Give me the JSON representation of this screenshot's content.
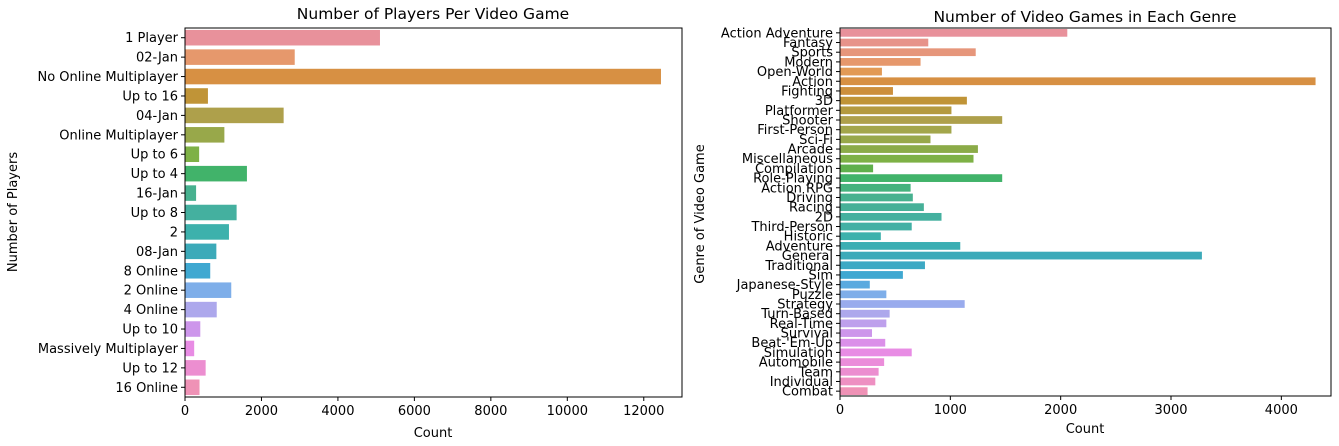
{
  "chart_data": [
    {
      "type": "bar",
      "orientation": "horizontal",
      "title": "Number of Players Per Video Game",
      "xlabel": "Count",
      "ylabel": "Number of Players",
      "xlim": [
        0,
        13000
      ],
      "xticks": [
        0,
        2000,
        4000,
        6000,
        8000,
        10000,
        12000
      ],
      "grid": false,
      "categories": [
        "1 Player",
        "02-Jan",
        "No Online Multiplayer",
        "Up to 16 ",
        "04-Jan",
        "Online Multiplayer",
        "Up to 6 ",
        "Up to 4 ",
        "16-Jan",
        "Up to 8 ",
        "2",
        "08-Jan",
        "8  Online",
        "2  Online",
        "4  Online",
        "Up to 10 ",
        "Massively Multiplayer",
        "Up to 12 ",
        "16  Online"
      ],
      "values": [
        5100,
        2870,
        12450,
        600,
        2580,
        1030,
        370,
        1620,
        290,
        1350,
        1150,
        820,
        660,
        1210,
        830,
        400,
        240,
        540,
        380
      ],
      "colors": [
        "#e8919b",
        "#e6986c",
        "#d79043",
        "#c09437",
        "#aea04b",
        "#98a84a",
        "#7eb146",
        "#41b36a",
        "#47b18f",
        "#44b09f",
        "#3db1ac",
        "#3caab9",
        "#3fa8d1",
        "#7eaee9",
        "#ada8ec",
        "#cd96eb",
        "#e88ce4",
        "#ec8ed0",
        "#ef92b6"
      ]
    },
    {
      "type": "bar",
      "orientation": "horizontal",
      "title": "Number of Video Games in Each Genre",
      "xlabel": "Count",
      "ylabel": "Genre of Video Game",
      "xlim": [
        0,
        4450
      ],
      "xticks": [
        0,
        1000,
        2000,
        3000,
        4000
      ],
      "grid": false,
      "categories": [
        "Action Adventure",
        "Fantasy",
        "Sports",
        "Modern",
        "Open-World",
        "Action",
        "Fighting",
        "3D",
        "Platformer",
        "Shooter",
        "First-Person",
        "Sci-Fi",
        "Arcade",
        "Miscellaneous",
        "Compilation",
        "Role-Playing",
        "Action RPG",
        "Driving",
        "Racing",
        "2D",
        "Third-Person",
        "Historic",
        "Adventure",
        "General",
        "Traditional",
        "Sim",
        "Japanese-Style",
        "Puzzle",
        "Strategy",
        "Turn-Based",
        "Real-Time",
        "Survival",
        "Beat-'Em-Up",
        "Simulation",
        "Automobile",
        "Team",
        "Individual",
        "Combat"
      ],
      "values": [
        2060,
        800,
        1230,
        730,
        380,
        4310,
        480,
        1150,
        1010,
        1470,
        1010,
        820,
        1250,
        1210,
        300,
        1470,
        640,
        660,
        760,
        920,
        650,
        370,
        1090,
        3280,
        770,
        570,
        270,
        420,
        1130,
        450,
        420,
        290,
        410,
        650,
        400,
        350,
        320,
        250
      ],
      "colors": [
        "#e8919b",
        "#e7938a",
        "#e6967b",
        "#e6986c",
        "#e29a55",
        "#d79043",
        "#cc8f3c",
        "#c09437",
        "#b49a3f",
        "#aea04b",
        "#a3a64b",
        "#98a84a",
        "#8bab48",
        "#7eb146",
        "#5fb04c",
        "#41b36a",
        "#45b27e",
        "#47b18f",
        "#46b098",
        "#44b09f",
        "#42b0a5",
        "#3db1ac",
        "#3aaeb3",
        "#3caab9",
        "#3da9c4",
        "#3fa8d1",
        "#5aaadf",
        "#7eaee9",
        "#99abed",
        "#ada8ec",
        "#bea0ec",
        "#cd96eb",
        "#db90e9",
        "#e88ce4",
        "#eb8dda",
        "#ec8ed0",
        "#ee90c2",
        "#ef92b6"
      ]
    }
  ]
}
